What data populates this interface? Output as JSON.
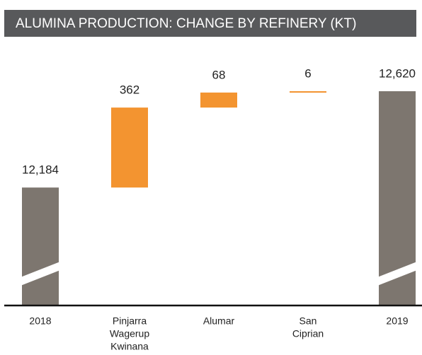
{
  "chart_data": {
    "type": "waterfall",
    "title": "ALUMINA PRODUCTION: CHANGE BY REFINERY (KT)",
    "categories": [
      [
        "2018"
      ],
      [
        "Pinjarra",
        "Wagerup",
        "Kwinana"
      ],
      [
        "Alumar"
      ],
      [
        "San",
        "Ciprian"
      ],
      [
        "2019"
      ]
    ],
    "values": [
      12184,
      362,
      68,
      6,
      12620
    ],
    "value_labels": [
      "12,184",
      "362",
      "68",
      "6",
      "12,620"
    ],
    "measure": [
      "total",
      "increase",
      "increase",
      "increase",
      "total"
    ],
    "total_color": "#7d766f",
    "increase_color": "#f39430",
    "ylim": [
      11650,
      12700
    ],
    "broken_axis": true
  }
}
